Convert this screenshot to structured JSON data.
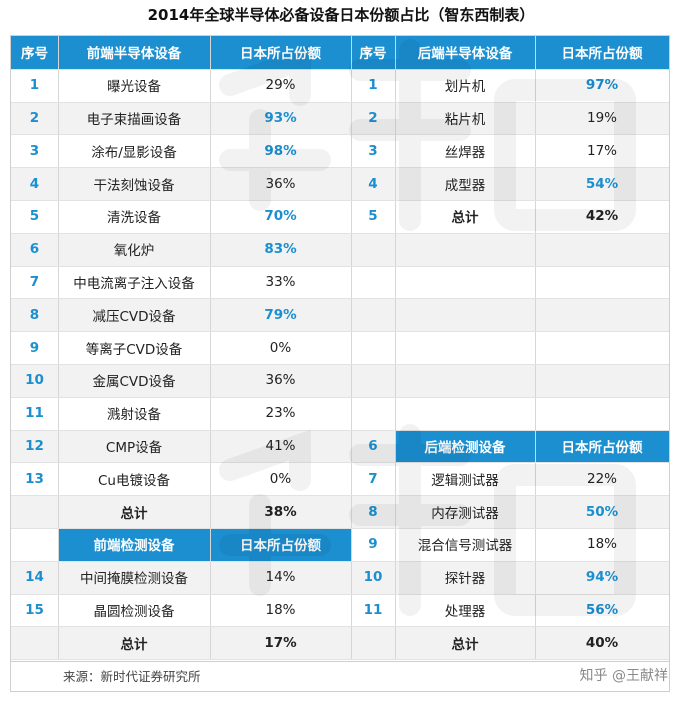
{
  "title": "2014年全球半导体必备设备日本份额占比（智东西制表）",
  "headers": {
    "index": "序号",
    "front_equipment": "前端半导体设备",
    "japan_share": "日本所占份额",
    "back_equipment": "后端半导体设备",
    "front_inspection": "前端检测设备",
    "back_inspection": "后端检测设备"
  },
  "front_rows": [
    {
      "no": "1",
      "name": "曝光设备",
      "share": "29%",
      "hi": false
    },
    {
      "no": "2",
      "name": "电子束描画设备",
      "share": "93%",
      "hi": true
    },
    {
      "no": "3",
      "name": "涂布/显影设备",
      "share": "98%",
      "hi": true
    },
    {
      "no": "4",
      "name": "干法刻蚀设备",
      "share": "36%",
      "hi": false
    },
    {
      "no": "5",
      "name": "清洗设备",
      "share": "70%",
      "hi": true
    },
    {
      "no": "6",
      "name": "氧化炉",
      "share": "83%",
      "hi": true
    },
    {
      "no": "7",
      "name": "中电流离子注入设备",
      "share": "33%",
      "hi": false
    },
    {
      "no": "8",
      "name": "减压CVD设备",
      "share": "79%",
      "hi": true
    },
    {
      "no": "9",
      "name": "等离子CVD设备",
      "share": "0%",
      "hi": false
    },
    {
      "no": "10",
      "name": "金属CVD设备",
      "share": "36%",
      "hi": false
    },
    {
      "no": "11",
      "name": "溅射设备",
      "share": "23%",
      "hi": false
    },
    {
      "no": "12",
      "name": "CMP设备",
      "share": "41%",
      "hi": false
    },
    {
      "no": "13",
      "name": "Cu电镀设备",
      "share": "0%",
      "hi": false
    }
  ],
  "front_total": {
    "label": "总计",
    "share": "38%"
  },
  "front_inspection_rows": [
    {
      "no": "14",
      "name": "中间掩膜检测设备",
      "share": "14%",
      "hi": false
    },
    {
      "no": "15",
      "name": "晶圆检测设备",
      "share": "18%",
      "hi": false
    }
  ],
  "front_inspection_total": {
    "label": "总计",
    "share": "17%"
  },
  "back_rows": [
    {
      "no": "1",
      "name": "划片机",
      "share": "97%",
      "hi": true
    },
    {
      "no": "2",
      "name": "粘片机",
      "share": "19%",
      "hi": false
    },
    {
      "no": "3",
      "name": "丝焊器",
      "share": "17%",
      "hi": false
    },
    {
      "no": "4",
      "name": "成型器",
      "share": "54%",
      "hi": true
    }
  ],
  "back_total": {
    "no": "5",
    "label": "总计",
    "share": "42%"
  },
  "back_inspection_header_no": "6",
  "back_inspection_rows": [
    {
      "no": "7",
      "name": "逻辑测试器",
      "share": "22%",
      "hi": false
    },
    {
      "no": "8",
      "name": "内存测试器",
      "share": "50%",
      "hi": true
    },
    {
      "no": "9",
      "name": "混合信号测试器",
      "share": "18%",
      "hi": false
    },
    {
      "no": "10",
      "name": "探针器",
      "share": "94%",
      "hi": true
    },
    {
      "no": "11",
      "name": "处理器",
      "share": "56%",
      "hi": true
    }
  ],
  "back_inspection_total": {
    "label": "总计",
    "share": "40%"
  },
  "source": "来源：新时代证券研究所",
  "attribution": "知乎 @王献祥",
  "colors": {
    "accent": "#1b8fd0",
    "stripe": "#f2f2f2"
  }
}
